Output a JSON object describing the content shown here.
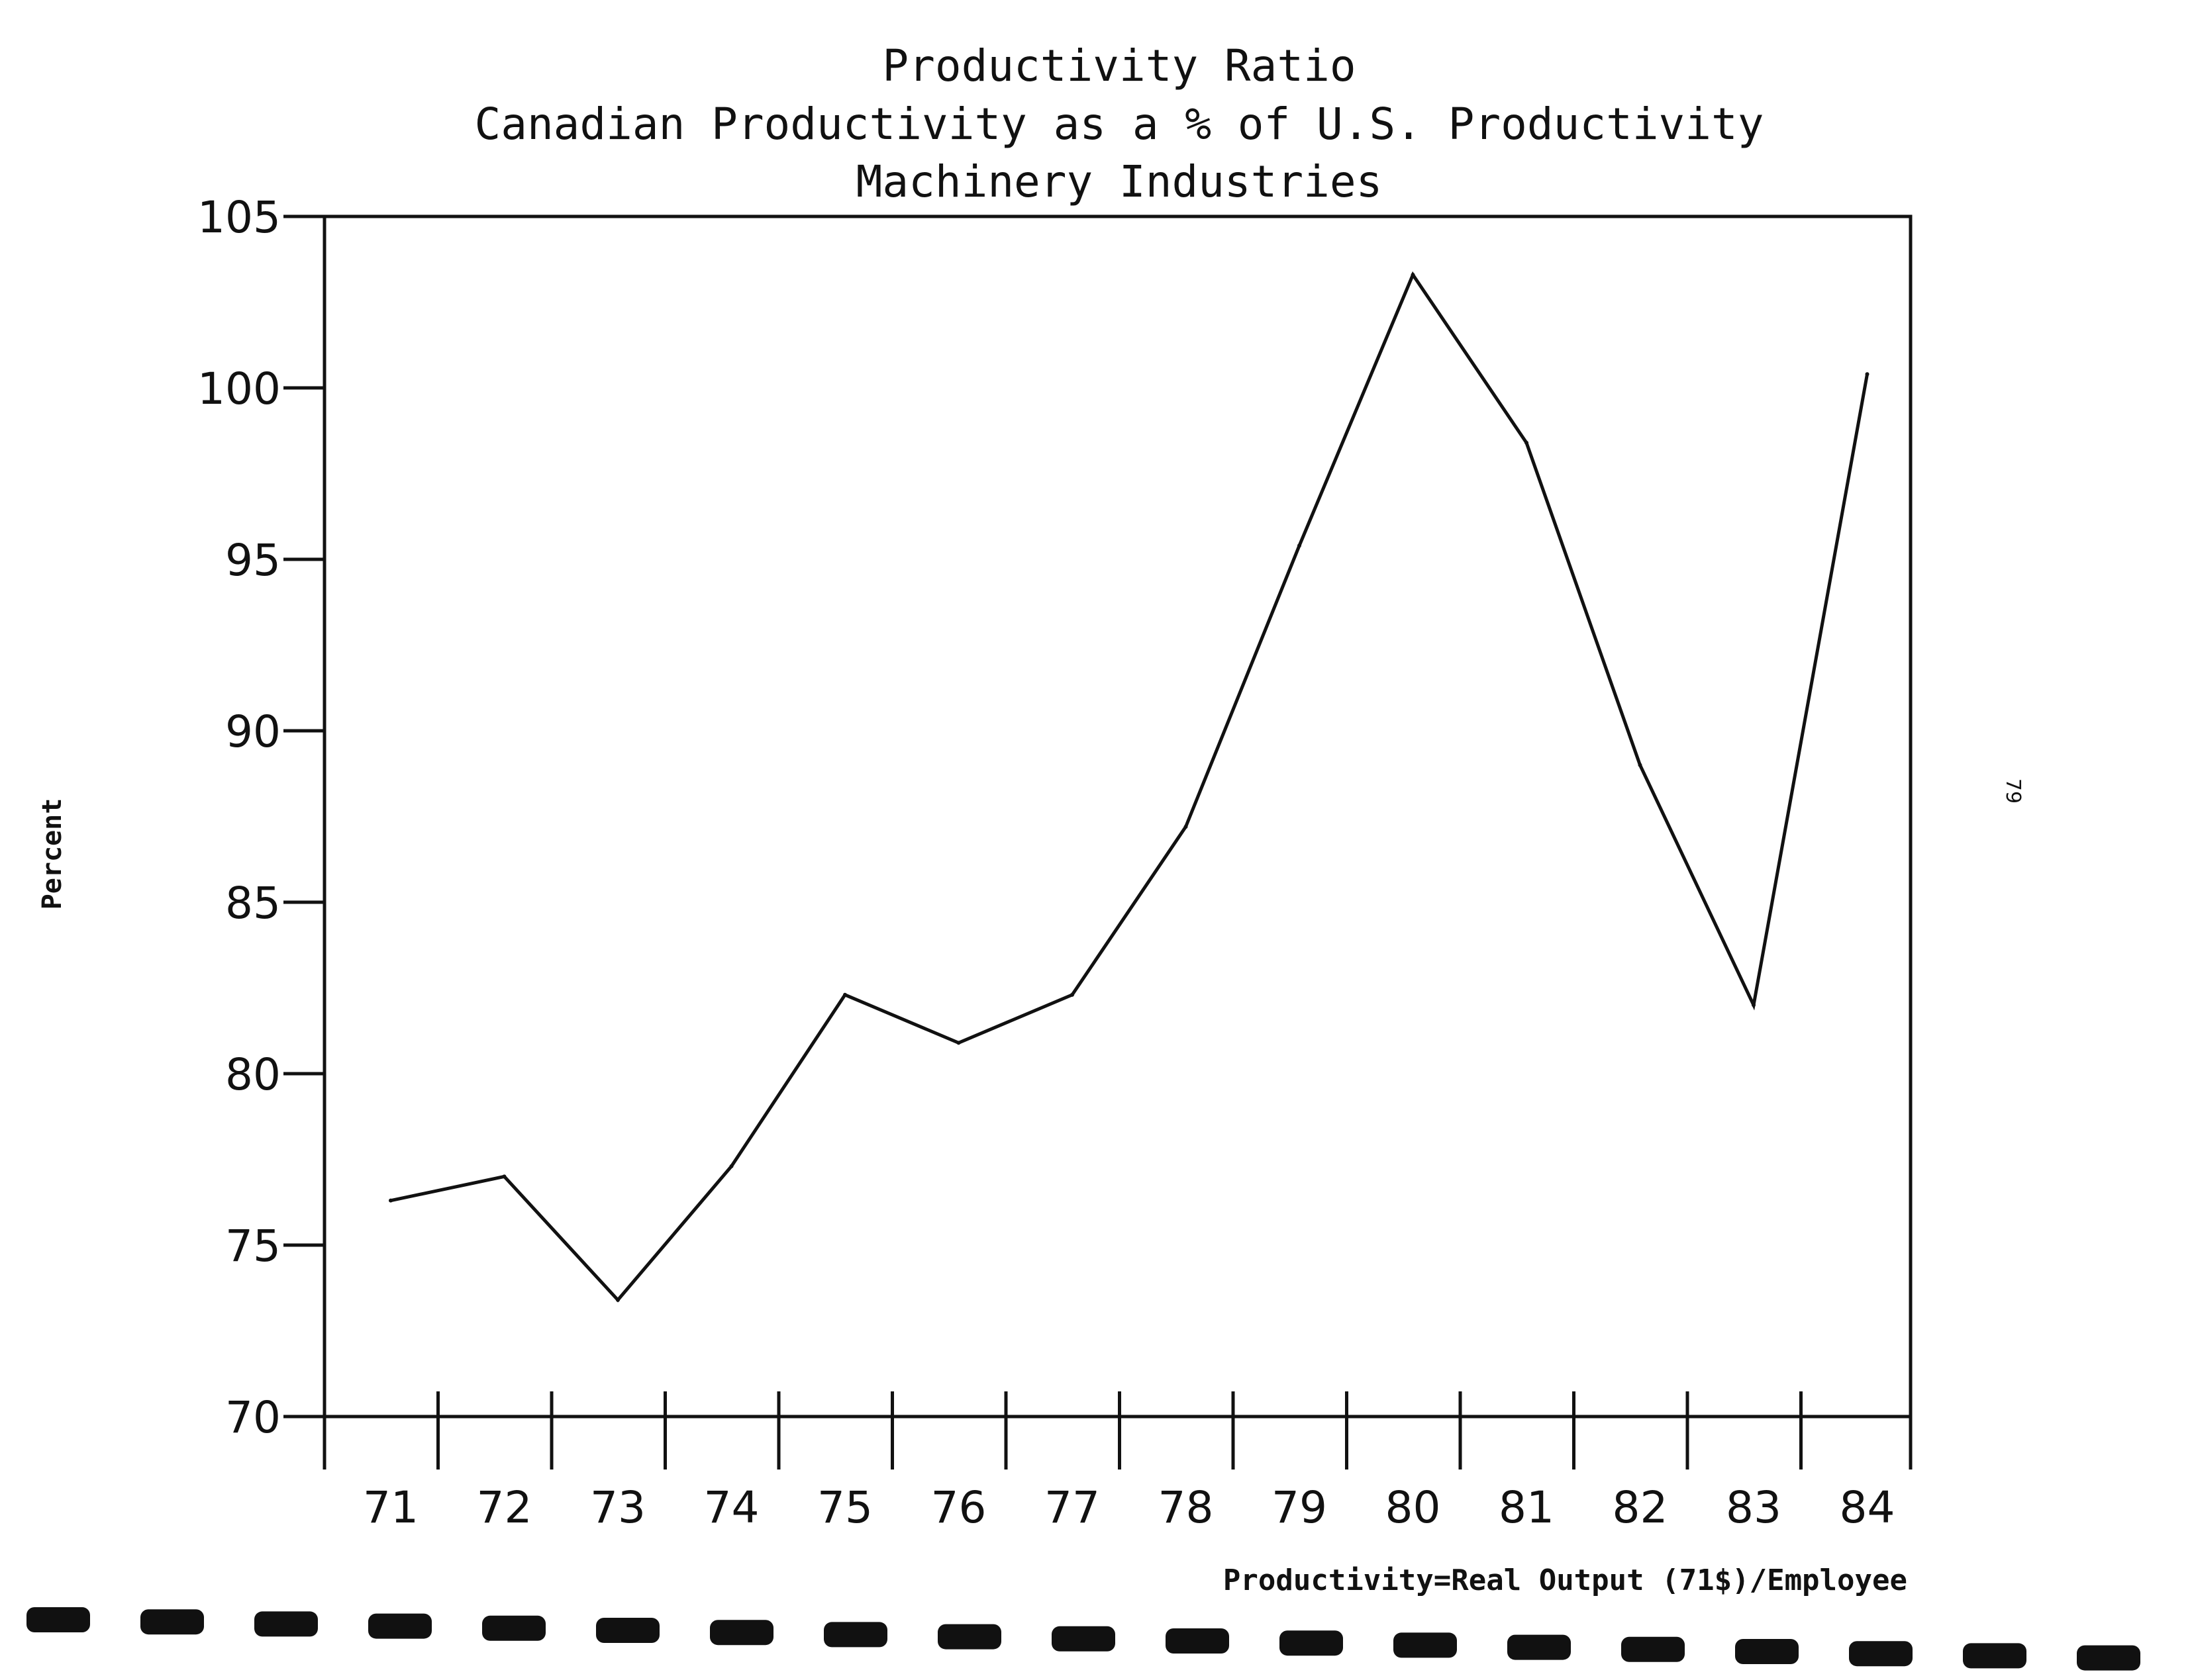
{
  "chart_data": {
    "type": "line",
    "title": "Productivity Ratio",
    "subtitle": "Canadian Productivity as a % of U.S. Productivity",
    "subtitle2": "Machinery Industries",
    "ylabel": "Percent",
    "xlabel": "",
    "footnote": "Productivity=Real Output (71$)/Employee",
    "page_number": "79",
    "categories": [
      "71",
      "72",
      "73",
      "74",
      "75",
      "76",
      "77",
      "78",
      "79",
      "80",
      "81",
      "82",
      "83",
      "84"
    ],
    "series": [
      {
        "values": [
          76.3,
          77.0,
          73.4,
          77.3,
          82.3,
          80.9,
          82.3,
          87.2,
          95.4,
          103.3,
          98.4,
          89.0,
          82.0,
          100.4
        ]
      }
    ],
    "ylim": [
      70,
      105
    ],
    "yticks": [
      "70",
      "75",
      "80",
      "85",
      "90",
      "95",
      "100",
      "105"
    ],
    "grid": false,
    "legend": "none",
    "line_color": "#111111"
  }
}
